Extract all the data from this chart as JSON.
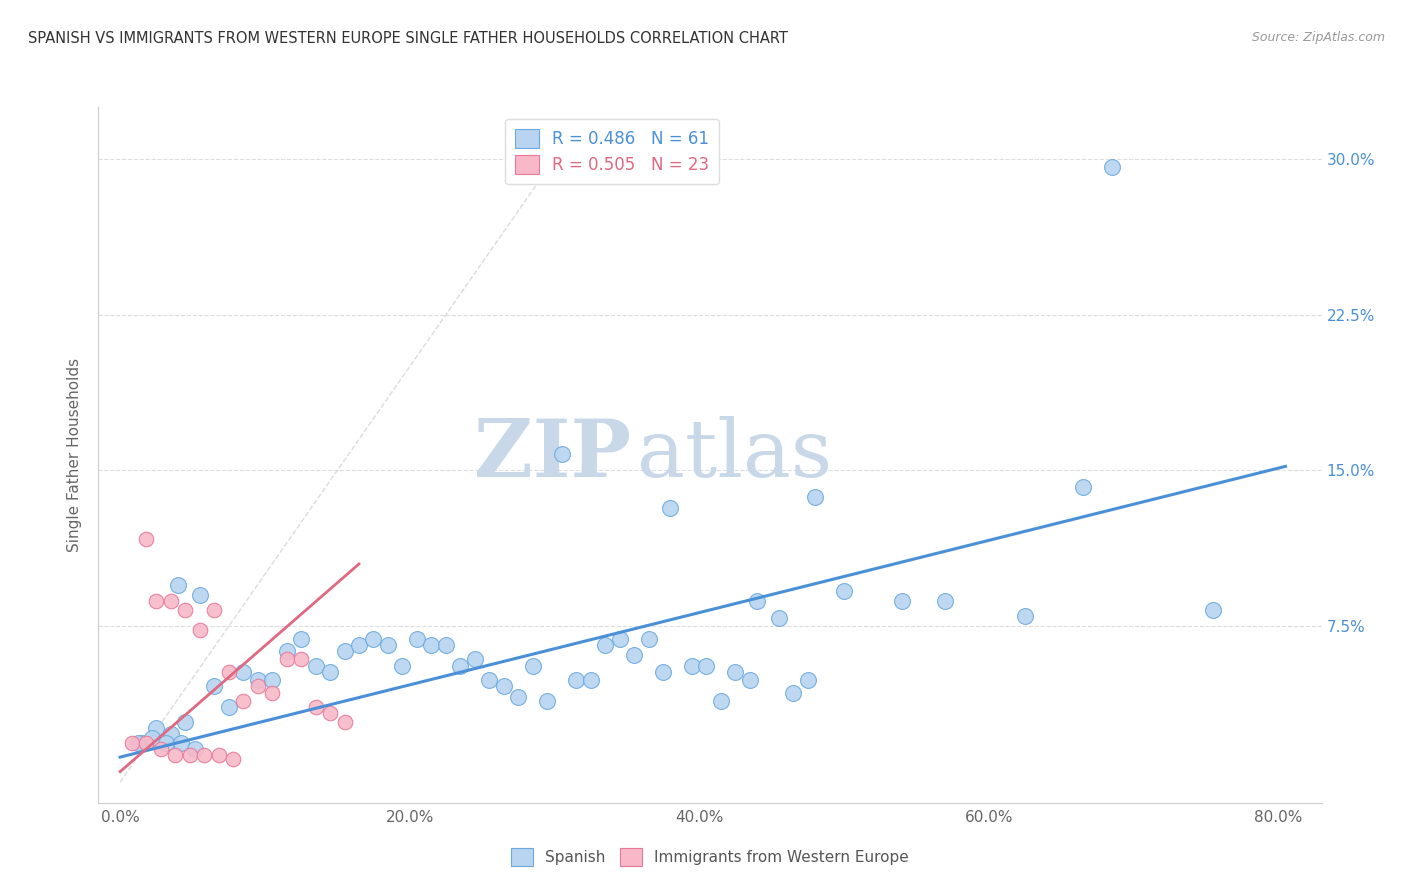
{
  "title": "SPANISH VS IMMIGRANTS FROM WESTERN EUROPE SINGLE FATHER HOUSEHOLDS CORRELATION CHART",
  "source": "Source: ZipAtlas.com",
  "ylabel": "Single Father Households",
  "xlabel_ticks": [
    "0.0%",
    "20.0%",
    "40.0%",
    "60.0%",
    "80.0%"
  ],
  "xlabel_vals": [
    0.0,
    0.2,
    0.4,
    0.6,
    0.8
  ],
  "ylabel_ticks": [
    "7.5%",
    "15.0%",
    "22.5%",
    "30.0%"
  ],
  "ylabel_vals": [
    0.075,
    0.15,
    0.225,
    0.3
  ],
  "xlim": [
    -0.015,
    0.83
  ],
  "ylim": [
    -0.01,
    0.325
  ],
  "legend_blue_label": "Spanish",
  "legend_pink_label": "Immigrants from Western Europe",
  "R_blue": 0.486,
  "N_blue": 61,
  "R_pink": 0.505,
  "N_pink": 23,
  "blue_color": "#b8d4f0",
  "blue_edge_color": "#6aaae0",
  "blue_line_color": "#4a90d9",
  "pink_color": "#f8b8c8",
  "pink_edge_color": "#e87898",
  "pink_line_color": "#e06880",
  "diagonal_color": "#cccccc",
  "watermark_zip_color": "#c8d8e8",
  "watermark_atlas_color": "#c8d8e8",
  "blue_scatter_x": [
    0.305,
    0.685,
    0.38,
    0.48,
    0.44,
    0.5,
    0.54,
    0.57,
    0.625,
    0.665,
    0.04,
    0.055,
    0.065,
    0.085,
    0.095,
    0.105,
    0.115,
    0.125,
    0.135,
    0.145,
    0.155,
    0.165,
    0.175,
    0.185,
    0.195,
    0.205,
    0.215,
    0.225,
    0.235,
    0.245,
    0.255,
    0.265,
    0.275,
    0.285,
    0.295,
    0.315,
    0.325,
    0.335,
    0.345,
    0.355,
    0.365,
    0.375,
    0.395,
    0.405,
    0.415,
    0.425,
    0.435,
    0.455,
    0.465,
    0.475,
    0.015,
    0.025,
    0.035,
    0.045,
    0.075,
    0.755,
    0.012,
    0.022,
    0.032,
    0.042,
    0.052
  ],
  "blue_scatter_y": [
    0.158,
    0.296,
    0.132,
    0.137,
    0.087,
    0.092,
    0.087,
    0.087,
    0.08,
    0.142,
    0.095,
    0.09,
    0.046,
    0.053,
    0.049,
    0.049,
    0.063,
    0.069,
    0.056,
    0.053,
    0.063,
    0.066,
    0.069,
    0.066,
    0.056,
    0.069,
    0.066,
    0.066,
    0.056,
    0.059,
    0.049,
    0.046,
    0.041,
    0.056,
    0.039,
    0.049,
    0.049,
    0.066,
    0.069,
    0.061,
    0.069,
    0.053,
    0.056,
    0.056,
    0.039,
    0.053,
    0.049,
    0.079,
    0.043,
    0.049,
    0.019,
    0.026,
    0.023,
    0.029,
    0.036,
    0.083,
    0.019,
    0.021,
    0.019,
    0.019,
    0.016
  ],
  "pink_scatter_x": [
    0.018,
    0.025,
    0.035,
    0.045,
    0.055,
    0.065,
    0.075,
    0.085,
    0.095,
    0.105,
    0.115,
    0.125,
    0.135,
    0.145,
    0.155,
    0.008,
    0.018,
    0.028,
    0.038,
    0.048,
    0.058,
    0.068,
    0.078
  ],
  "pink_scatter_y": [
    0.117,
    0.087,
    0.087,
    0.083,
    0.073,
    0.083,
    0.053,
    0.039,
    0.046,
    0.043,
    0.059,
    0.059,
    0.036,
    0.033,
    0.029,
    0.019,
    0.019,
    0.016,
    0.013,
    0.013,
    0.013,
    0.013,
    0.011
  ],
  "blue_trendline_x": [
    0.0,
    0.805
  ],
  "blue_trendline_y": [
    0.012,
    0.152
  ],
  "pink_trendline_x": [
    0.0,
    0.165
  ],
  "pink_trendline_y": [
    0.005,
    0.105
  ],
  "diag_line_x": [
    0.0,
    0.315
  ],
  "diag_line_y": [
    0.0,
    0.315
  ]
}
